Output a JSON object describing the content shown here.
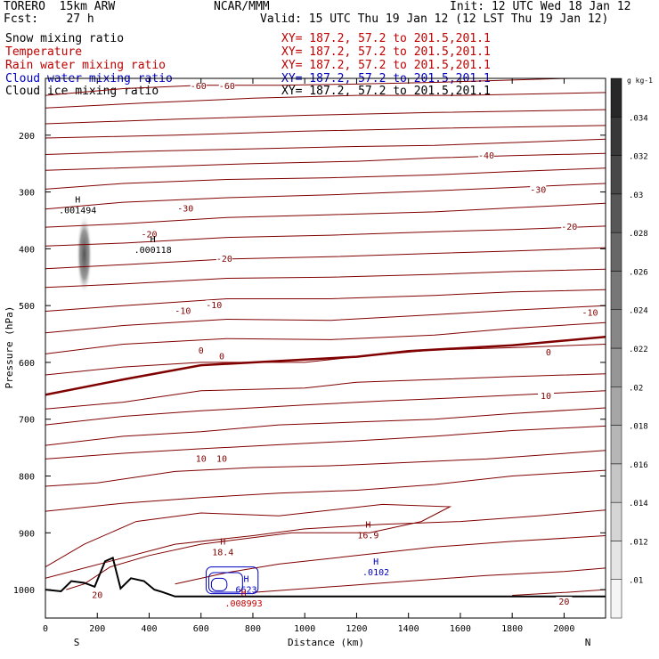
{
  "header": {
    "model": "TORERO  15km ARW",
    "fcst": "Fcst:    27 h",
    "org": "NCAR/MMM",
    "init": "Init: 12 UTC Wed 18 Jan 12",
    "valid": "Valid: 15 UTC Thu 19 Jan 12 (12 LST Thu 19 Jan 12)"
  },
  "fields": [
    {
      "name": "Snow mixing ratio",
      "xy": "XY= 187.2, 57.2 to 201.5,201.1",
      "color": "#000000"
    },
    {
      "name": "Temperature",
      "xy": "XY= 187.2, 57.2 to 201.5,201.1",
      "color": "#c00000"
    },
    {
      "name": "Rain water mixing ratio",
      "xy": "XY= 187.2, 57.2 to 201.5,201.1",
      "color": "#c00000"
    },
    {
      "name": "Cloud water mixing ratio",
      "xy": "XY= 187.2, 57.2 to 201.5,201.1",
      "color": "#0000c0"
    },
    {
      "name": "Cloud ice mixing ratio",
      "xy": "XY= 187.2, 57.2 to 201.5,201.1",
      "color": "#000000"
    }
  ],
  "chart_data": {
    "type": "contour",
    "xlabel": "Distance (km)",
    "ylabel": "Pressure (hPa)",
    "xlim": [
      0,
      2160
    ],
    "ylim": [
      1050,
      100
    ],
    "x_ticks": [
      0,
      200,
      400,
      600,
      800,
      1000,
      1200,
      1400,
      1600,
      1800,
      2000
    ],
    "y_ticks": [
      200,
      300,
      400,
      500,
      600,
      700,
      800,
      900,
      1000
    ],
    "x_end_labels": {
      "left": "S",
      "right": "N"
    },
    "temperature_color": "#800000",
    "temperature_contours": [
      {
        "level": -60,
        "points": [
          [
            0,
            130
          ],
          [
            300,
            118
          ],
          [
            600,
            112
          ],
          [
            900,
            112
          ],
          [
            1200,
            110
          ],
          [
            1500,
            107
          ],
          [
            1800,
            103
          ],
          [
            2160,
            98
          ]
        ]
      },
      {
        "level": -60,
        "points": [
          [
            0,
            152
          ],
          [
            400,
            143
          ],
          [
            800,
            135
          ],
          [
            1200,
            130
          ],
          [
            1600,
            130
          ],
          [
            2160,
            125
          ]
        ]
      },
      {
        "level": -50,
        "points": [
          [
            0,
            180
          ],
          [
            500,
            172
          ],
          [
            1000,
            165
          ],
          [
            1500,
            160
          ],
          [
            2160,
            155
          ]
        ]
      },
      {
        "level": -50,
        "points": [
          [
            0,
            205
          ],
          [
            500,
            200
          ],
          [
            1000,
            193
          ],
          [
            1500,
            188
          ],
          [
            2160,
            183
          ]
        ]
      },
      {
        "level": -40,
        "points": [
          [
            0,
            234
          ],
          [
            400,
            228
          ],
          [
            800,
            224
          ],
          [
            1200,
            220
          ],
          [
            1500,
            218
          ],
          [
            1800,
            213
          ],
          [
            2160,
            207
          ]
        ]
      },
      {
        "level": -40,
        "points": [
          [
            0,
            262
          ],
          [
            400,
            256
          ],
          [
            800,
            250
          ],
          [
            1200,
            246
          ],
          [
            1500,
            240
          ],
          [
            1800,
            236
          ],
          [
            2160,
            232
          ]
        ]
      },
      {
        "level": -30,
        "points": [
          [
            0,
            295
          ],
          [
            300,
            285
          ],
          [
            700,
            278
          ],
          [
            1100,
            275
          ],
          [
            1500,
            270
          ],
          [
            1800,
            264
          ],
          [
            2160,
            258
          ]
        ]
      },
      {
        "level": -30,
        "points": [
          [
            0,
            330
          ],
          [
            300,
            318
          ],
          [
            700,
            310
          ],
          [
            1100,
            305
          ],
          [
            1500,
            298
          ],
          [
            1800,
            292
          ],
          [
            2160,
            285
          ]
        ]
      },
      {
        "level": -30,
        "points": [
          [
            0,
            362
          ],
          [
            300,
            356
          ],
          [
            700,
            345
          ],
          [
            1100,
            340
          ],
          [
            1500,
            335
          ],
          [
            1800,
            328
          ],
          [
            2160,
            320
          ]
        ]
      },
      {
        "level": -20,
        "points": [
          [
            0,
            395
          ],
          [
            300,
            390
          ],
          [
            700,
            380
          ],
          [
            1100,
            376
          ],
          [
            1500,
            370
          ],
          [
            1800,
            366
          ],
          [
            2160,
            360
          ]
        ]
      },
      {
        "level": -20,
        "points": [
          [
            0,
            435
          ],
          [
            300,
            428
          ],
          [
            700,
            418
          ],
          [
            1100,
            414
          ],
          [
            1500,
            408
          ],
          [
            1800,
            404
          ],
          [
            2160,
            398
          ]
        ]
      },
      {
        "level": -20,
        "points": [
          [
            0,
            468
          ],
          [
            300,
            462
          ],
          [
            700,
            452
          ],
          [
            1100,
            450
          ],
          [
            1500,
            445
          ],
          [
            1800,
            440
          ],
          [
            2160,
            436
          ]
        ]
      },
      {
        "level": -10,
        "points": [
          [
            0,
            510
          ],
          [
            300,
            500
          ],
          [
            700,
            488
          ],
          [
            1100,
            488
          ],
          [
            1500,
            482
          ],
          [
            1800,
            476
          ],
          [
            2160,
            472
          ]
        ]
      },
      {
        "level": -10,
        "points": [
          [
            0,
            548
          ],
          [
            300,
            535
          ],
          [
            700,
            524
          ],
          [
            1100,
            526
          ],
          [
            1500,
            516
          ],
          [
            1800,
            508
          ],
          [
            2160,
            500
          ]
        ]
      },
      {
        "level": -10,
        "points": [
          [
            0,
            585
          ],
          [
            300,
            568
          ],
          [
            700,
            558
          ],
          [
            1100,
            560
          ],
          [
            1500,
            552
          ],
          [
            1800,
            540
          ],
          [
            2160,
            530
          ]
        ]
      },
      {
        "level": 0,
        "points": [
          [
            0,
            622
          ],
          [
            300,
            608
          ],
          [
            600,
            600
          ],
          [
            1000,
            600
          ],
          [
            1200,
            590
          ],
          [
            1500,
            578
          ],
          [
            1800,
            574
          ],
          [
            2160,
            568
          ]
        ]
      },
      {
        "level": 0,
        "points": [
          [
            0,
            657
          ],
          [
            300,
            630
          ],
          [
            600,
            605
          ],
          [
            1000,
            595
          ],
          [
            1200,
            590
          ],
          [
            1400,
            580
          ],
          [
            1800,
            570
          ],
          [
            2160,
            555
          ]
        ],
        "bold": true
      },
      {
        "level": 10,
        "points": [
          [
            0,
            682
          ],
          [
            300,
            670
          ],
          [
            600,
            650
          ],
          [
            1000,
            645
          ],
          [
            1200,
            635
          ],
          [
            1500,
            630
          ],
          [
            1800,
            625
          ],
          [
            2160,
            620
          ]
        ]
      },
      {
        "level": 10,
        "points": [
          [
            0,
            710
          ],
          [
            300,
            695
          ],
          [
            600,
            685
          ],
          [
            1000,
            675
          ],
          [
            1300,
            668
          ],
          [
            1600,
            662
          ],
          [
            2160,
            650
          ]
        ]
      },
      {
        "level": 10,
        "points": [
          [
            0,
            746
          ],
          [
            300,
            730
          ],
          [
            600,
            722
          ],
          [
            900,
            710
          ],
          [
            1200,
            705
          ],
          [
            1500,
            700
          ],
          [
            1800,
            690
          ],
          [
            2160,
            680
          ]
        ]
      },
      {
        "level": 10,
        "points": [
          [
            0,
            770
          ],
          [
            300,
            760
          ],
          [
            600,
            752
          ],
          [
            900,
            745
          ],
          [
            1200,
            738
          ],
          [
            1500,
            730
          ],
          [
            1800,
            720
          ],
          [
            2160,
            712
          ]
        ]
      },
      {
        "level": 10,
        "points": [
          [
            0,
            818
          ],
          [
            200,
            812
          ],
          [
            500,
            792
          ],
          [
            800,
            785
          ],
          [
            1100,
            782
          ],
          [
            1400,
            776
          ],
          [
            1700,
            770
          ],
          [
            2160,
            755
          ]
        ]
      },
      {
        "level": 10,
        "points": [
          [
            0,
            862
          ],
          [
            300,
            848
          ],
          [
            600,
            838
          ],
          [
            900,
            830
          ],
          [
            1200,
            825
          ],
          [
            1500,
            815
          ],
          [
            1800,
            800
          ],
          [
            2160,
            790
          ]
        ]
      },
      {
        "level": 20,
        "points": [
          [
            0,
            960
          ],
          [
            150,
            920
          ],
          [
            350,
            880
          ],
          [
            600,
            865
          ],
          [
            900,
            870
          ],
          [
            1300,
            850
          ],
          [
            1560,
            854
          ],
          [
            1450,
            880
          ],
          [
            1250,
            900
          ],
          [
            950,
            900
          ],
          [
            600,
            920
          ],
          [
            400,
            940
          ],
          [
            250,
            960
          ],
          [
            150,
            990
          ],
          [
            80,
            1000
          ]
        ]
      },
      {
        "level": 20,
        "points": [
          [
            0,
            980
          ],
          [
            250,
            950
          ],
          [
            500,
            920
          ],
          [
            800,
            905
          ],
          [
            1000,
            893
          ],
          [
            1300,
            885
          ],
          [
            1600,
            880
          ],
          [
            1900,
            870
          ],
          [
            2160,
            860
          ]
        ]
      },
      {
        "level": 20,
        "points": [
          [
            500,
            990
          ],
          [
            700,
            970
          ],
          [
            900,
            955
          ],
          [
            1200,
            940
          ],
          [
            1500,
            925
          ],
          [
            1800,
            915
          ],
          [
            2160,
            905
          ]
        ]
      },
      {
        "level": 20,
        "points": [
          [
            800,
            1005
          ],
          [
            1100,
            995
          ],
          [
            1400,
            985
          ],
          [
            1700,
            975
          ],
          [
            2000,
            968
          ],
          [
            2160,
            962
          ]
        ]
      },
      {
        "level": 20,
        "points": [
          [
            1800,
            1010
          ],
          [
            2000,
            1005
          ],
          [
            2160,
            1000
          ]
        ]
      }
    ],
    "temperature_labels": [
      {
        "text": "-60",
        "x": 590,
        "y": 114
      },
      {
        "text": "-60",
        "x": 700,
        "y": 114
      },
      {
        "text": "-40",
        "x": 1700,
        "y": 236
      },
      {
        "text": "-30",
        "x": 540,
        "y": 330
      },
      {
        "text": "-30",
        "x": 1900,
        "y": 297
      },
      {
        "text": "-20",
        "x": 400,
        "y": 375
      },
      {
        "text": "-20",
        "x": 690,
        "y": 418
      },
      {
        "text": "-20",
        "x": 2020,
        "y": 362
      },
      {
        "text": "-10",
        "x": 530,
        "y": 510
      },
      {
        "text": "-10",
        "x": 650,
        "y": 500
      },
      {
        "text": "-10",
        "x": 2100,
        "y": 513
      },
      {
        "text": "0",
        "x": 600,
        "y": 580
      },
      {
        "text": "0",
        "x": 680,
        "y": 590
      },
      {
        "text": "0",
        "x": 1940,
        "y": 583
      },
      {
        "text": "10",
        "x": 600,
        "y": 770
      },
      {
        "text": "10",
        "x": 680,
        "y": 770
      },
      {
        "text": "10",
        "x": 1930,
        "y": 660
      },
      {
        "text": "20",
        "x": 200,
        "y": 1010
      },
      {
        "text": "20",
        "x": 2000,
        "y": 1022
      }
    ],
    "maxima_labels": [
      {
        "marker": "H",
        "value": ".001494",
        "x": 90,
        "y": 328,
        "color": "#000000"
      },
      {
        "marker": "H",
        "value": ".000118",
        "x": 380,
        "y": 398,
        "color": "#000000"
      },
      {
        "marker": "H",
        "value": "18.4",
        "x": 650,
        "y": 930,
        "color": "#800000"
      },
      {
        "marker": "H",
        "value": "16.9",
        "x": 1210,
        "y": 900,
        "color": "#800000"
      },
      {
        "marker": "H",
        "value": ".0102",
        "x": 1240,
        "y": 965,
        "color": "#0000c0"
      },
      {
        "marker": "H",
        "value": "6623",
        "x": 740,
        "y": 996,
        "color": "#0000c0"
      },
      {
        "marker": "H",
        "value": ".008993",
        "x": 730,
        "y": 1020,
        "color": "#c00000"
      }
    ],
    "snow_blob": {
      "x": 150,
      "y": 410,
      "rx": 30,
      "ry": 70
    },
    "terrain": [
      [
        0,
        1000
      ],
      [
        60,
        1003
      ],
      [
        100,
        985
      ],
      [
        150,
        988
      ],
      [
        190,
        995
      ],
      [
        230,
        950
      ],
      [
        260,
        944
      ],
      [
        290,
        998
      ],
      [
        330,
        980
      ],
      [
        380,
        985
      ],
      [
        420,
        1000
      ],
      [
        450,
        1004
      ],
      [
        500,
        1012
      ],
      [
        2160,
        1012
      ]
    ],
    "colorbar": {
      "unit": "g kg-1",
      "ticks": [
        ".01",
        ".012",
        ".014",
        ".016",
        ".018",
        ".02",
        ".022",
        ".024",
        ".026",
        ".028",
        ".03",
        ".032",
        ".034"
      ]
    }
  }
}
